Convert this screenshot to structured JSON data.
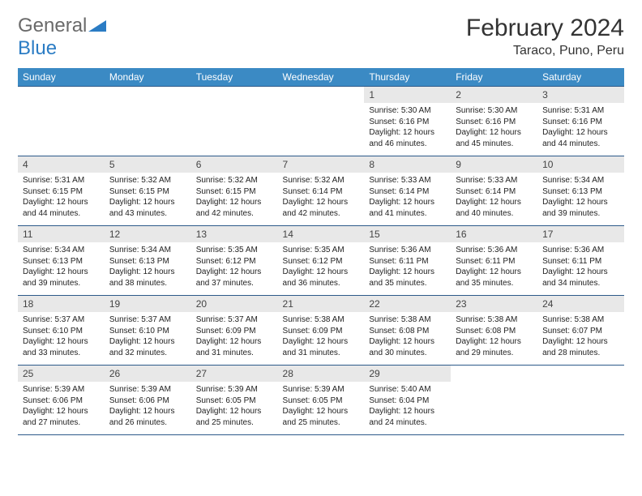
{
  "brand": {
    "text1": "General",
    "text2": "Blue"
  },
  "title": "February 2024",
  "subtitle": "Taraco, Puno, Peru",
  "colors": {
    "header_bg": "#3b8ac4",
    "header_text": "#ffffff",
    "rule": "#2d5a8a",
    "daynum_bg": "#e8e8e8"
  },
  "dayNames": [
    "Sunday",
    "Monday",
    "Tuesday",
    "Wednesday",
    "Thursday",
    "Friday",
    "Saturday"
  ],
  "weeks": [
    [
      null,
      null,
      null,
      null,
      {
        "n": "1",
        "sr": "5:30 AM",
        "ss": "6:16 PM",
        "dl": "12 hours and 46 minutes."
      },
      {
        "n": "2",
        "sr": "5:30 AM",
        "ss": "6:16 PM",
        "dl": "12 hours and 45 minutes."
      },
      {
        "n": "3",
        "sr": "5:31 AM",
        "ss": "6:16 PM",
        "dl": "12 hours and 44 minutes."
      }
    ],
    [
      {
        "n": "4",
        "sr": "5:31 AM",
        "ss": "6:15 PM",
        "dl": "12 hours and 44 minutes."
      },
      {
        "n": "5",
        "sr": "5:32 AM",
        "ss": "6:15 PM",
        "dl": "12 hours and 43 minutes."
      },
      {
        "n": "6",
        "sr": "5:32 AM",
        "ss": "6:15 PM",
        "dl": "12 hours and 42 minutes."
      },
      {
        "n": "7",
        "sr": "5:32 AM",
        "ss": "6:14 PM",
        "dl": "12 hours and 42 minutes."
      },
      {
        "n": "8",
        "sr": "5:33 AM",
        "ss": "6:14 PM",
        "dl": "12 hours and 41 minutes."
      },
      {
        "n": "9",
        "sr": "5:33 AM",
        "ss": "6:14 PM",
        "dl": "12 hours and 40 minutes."
      },
      {
        "n": "10",
        "sr": "5:34 AM",
        "ss": "6:13 PM",
        "dl": "12 hours and 39 minutes."
      }
    ],
    [
      {
        "n": "11",
        "sr": "5:34 AM",
        "ss": "6:13 PM",
        "dl": "12 hours and 39 minutes."
      },
      {
        "n": "12",
        "sr": "5:34 AM",
        "ss": "6:13 PM",
        "dl": "12 hours and 38 minutes."
      },
      {
        "n": "13",
        "sr": "5:35 AM",
        "ss": "6:12 PM",
        "dl": "12 hours and 37 minutes."
      },
      {
        "n": "14",
        "sr": "5:35 AM",
        "ss": "6:12 PM",
        "dl": "12 hours and 36 minutes."
      },
      {
        "n": "15",
        "sr": "5:36 AM",
        "ss": "6:11 PM",
        "dl": "12 hours and 35 minutes."
      },
      {
        "n": "16",
        "sr": "5:36 AM",
        "ss": "6:11 PM",
        "dl": "12 hours and 35 minutes."
      },
      {
        "n": "17",
        "sr": "5:36 AM",
        "ss": "6:11 PM",
        "dl": "12 hours and 34 minutes."
      }
    ],
    [
      {
        "n": "18",
        "sr": "5:37 AM",
        "ss": "6:10 PM",
        "dl": "12 hours and 33 minutes."
      },
      {
        "n": "19",
        "sr": "5:37 AM",
        "ss": "6:10 PM",
        "dl": "12 hours and 32 minutes."
      },
      {
        "n": "20",
        "sr": "5:37 AM",
        "ss": "6:09 PM",
        "dl": "12 hours and 31 minutes."
      },
      {
        "n": "21",
        "sr": "5:38 AM",
        "ss": "6:09 PM",
        "dl": "12 hours and 31 minutes."
      },
      {
        "n": "22",
        "sr": "5:38 AM",
        "ss": "6:08 PM",
        "dl": "12 hours and 30 minutes."
      },
      {
        "n": "23",
        "sr": "5:38 AM",
        "ss": "6:08 PM",
        "dl": "12 hours and 29 minutes."
      },
      {
        "n": "24",
        "sr": "5:38 AM",
        "ss": "6:07 PM",
        "dl": "12 hours and 28 minutes."
      }
    ],
    [
      {
        "n": "25",
        "sr": "5:39 AM",
        "ss": "6:06 PM",
        "dl": "12 hours and 27 minutes."
      },
      {
        "n": "26",
        "sr": "5:39 AM",
        "ss": "6:06 PM",
        "dl": "12 hours and 26 minutes."
      },
      {
        "n": "27",
        "sr": "5:39 AM",
        "ss": "6:05 PM",
        "dl": "12 hours and 25 minutes."
      },
      {
        "n": "28",
        "sr": "5:39 AM",
        "ss": "6:05 PM",
        "dl": "12 hours and 25 minutes."
      },
      {
        "n": "29",
        "sr": "5:40 AM",
        "ss": "6:04 PM",
        "dl": "12 hours and 24 minutes."
      },
      null,
      null
    ]
  ],
  "labels": {
    "sunrise": "Sunrise:",
    "sunset": "Sunset:",
    "daylight": "Daylight:"
  }
}
